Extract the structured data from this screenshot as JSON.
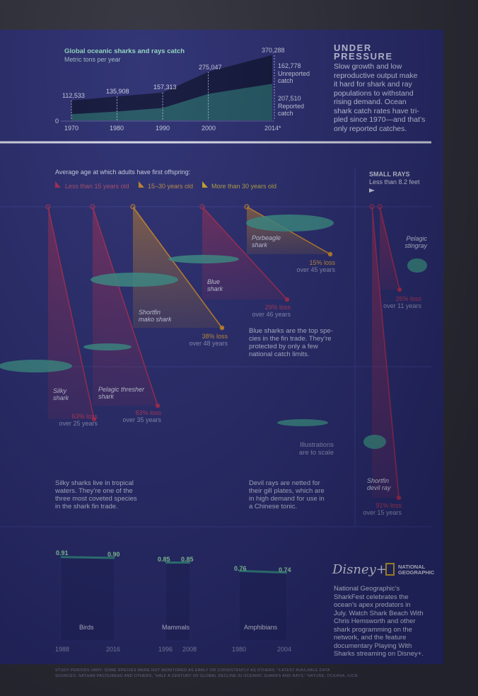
{
  "colors": {
    "bg": "#272a6e",
    "dark": "#0d1238",
    "reported": "#1f5360",
    "red": "#a02a52",
    "orange": "#c0802a",
    "gold": "#c6a32c",
    "teal": "#2f7f80"
  },
  "catch": {
    "title": "Global oceanic sharks and rays catch",
    "subtitle": "Metric tons per year",
    "labels": [
      "112,533",
      "135,908",
      "157,313",
      "275,047",
      "370,288"
    ],
    "unreported_value": "162,778",
    "unreported_label": "Unreported catch",
    "reported_value": "207,510",
    "reported_label": "Reported catch",
    "zero": "0",
    "years": [
      "1970",
      "1980",
      "1990",
      "2000",
      "2014*"
    ]
  },
  "chart_data": [
    {
      "type": "area",
      "title": "Global oceanic sharks and rays catch",
      "ylabel": "Metric tons per year",
      "x": [
        1970,
        1980,
        1990,
        2000,
        2014
      ],
      "series": [
        {
          "name": "Reported catch",
          "values": [
            35000,
            50000,
            70000,
            150000,
            207510
          ]
        },
        {
          "name": "Unreported catch",
          "values": [
            77533,
            85908,
            87313,
            125047,
            162778
          ]
        }
      ],
      "totals": [
        112533,
        135908,
        157313,
        275047,
        370288
      ],
      "ylim": [
        0,
        400000
      ]
    },
    {
      "type": "bar",
      "title": "",
      "categories": [
        "Birds",
        "Mammals",
        "Amphibians"
      ],
      "series": [
        {
          "name": "start",
          "values": [
            0.91,
            0.85,
            0.76
          ]
        },
        {
          "name": "end",
          "values": [
            0.9,
            0.85,
            0.74
          ]
        }
      ],
      "years": [
        [
          "1988",
          "2016"
        ],
        [
          "1996",
          "2008"
        ],
        [
          "1980",
          "2004"
        ]
      ],
      "ylim": [
        0,
        1
      ]
    }
  ],
  "pressure": {
    "title_line1": "UNDER",
    "title_line2": "PRESSURE",
    "lines": [
      "Slow growth and low",
      "reproductive output make",
      "it hard for shark and ray",
      "populations to withstand",
      "rising demand. Ocean",
      "shark catch rates have tri-",
      "pled since 1970—and that’s",
      "only reported catches."
    ]
  },
  "legend": {
    "heading": "Average age at which adults have first offspring:",
    "items": [
      "Less than 15 years old",
      "15–30 years old",
      "More than 30 years old"
    ]
  },
  "small_rays": {
    "title": "SMALL RAYS",
    "subtitle": "Less than 8.2 feet"
  },
  "species": [
    {
      "name": "Silky",
      "name2": "shark",
      "loss": "63% loss",
      "period": "over 25 years"
    },
    {
      "name": "Pelagic thresher",
      "name2": "shark",
      "loss": "83% loss",
      "period": "over 35 years"
    },
    {
      "name": "Shortfin",
      "name2": "mako shark",
      "loss": "38% loss",
      "period": "over 48 years"
    },
    {
      "name": "Blue",
      "name2": "shark",
      "loss": "29% loss",
      "period": "over 46 years"
    },
    {
      "name": "Porbeagle",
      "name2": "shark",
      "loss": "15% loss",
      "period": "over 45 years"
    },
    {
      "name": "Pelagic",
      "name2": "stingray",
      "loss": "26% loss",
      "period": "over 11 years"
    },
    {
      "name": "Shortfin",
      "name2": "devil ray",
      "loss": "91% loss",
      "period": "over 15 years"
    }
  ],
  "notes": {
    "blue": [
      "Blue sharks are the top spe-",
      "cies in the fin trade. They’re",
      "protected by only a few",
      "national catch limits."
    ],
    "silky": [
      "Silky sharks live in tropical",
      "waters. They’re one of the",
      "three most coveted species",
      "in the shark fin trade."
    ],
    "devil": [
      "Devil rays are netted for",
      "their gill plates, which are",
      "in high demand for use in",
      "a Chinese tonic."
    ],
    "scale": [
      "Illustrations",
      "are to scale"
    ]
  },
  "bottom": {
    "groups": [
      {
        "label": "Birds",
        "start": "0.91",
        "end": "0.90",
        "y1": "1988",
        "y2": "2016"
      },
      {
        "label": "Mammals",
        "start": "0.85",
        "end": "0.85",
        "y1": "1996",
        "y2": "2008"
      },
      {
        "label": "Amphibians",
        "start": "0.76",
        "end": "0.74",
        "y1": "1980",
        "y2": "2004"
      }
    ],
    "brand1": "Disney+",
    "brand2a": "NATIONAL",
    "brand2b": "GEOGRAPHIC",
    "promo": [
      "National Geographic’s",
      "SharkFest celebrates the",
      "ocean’s apex predators in",
      "July. Watch Shark Beach With",
      "Chris Hemsworth and other",
      "shark programming on the",
      "network, and the feature",
      "documentary Playing With",
      "Sharks streaming on Disney+."
    ]
  },
  "footer": {
    "line1": "STUDY PERIODS VARY; SOME SPECIES WERE NOT MONITORED AS EARLY OR CONSISTENTLY AS OTHERS. *LATEST AVAILABLE DATA",
    "line2": "SOURCES: NATHAN PACOUREAU AND OTHERS, “HALF A CENTURY OF GLOBAL DECLINE IN OCEANIC SHARKS AND RAYS,” NATURE; OCEANA; IUCN"
  }
}
